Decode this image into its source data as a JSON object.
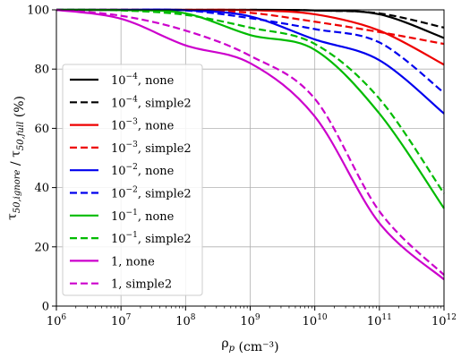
{
  "chart_data": {
    "type": "line",
    "xlabel": "ρ_p (cm⁻³)",
    "ylabel": "τ_50,ignore / τ_50,full (%)",
    "xscale": "log",
    "xlim": [
      1000000,
      1000000000000
    ],
    "ylim": [
      0,
      100
    ],
    "grid": true,
    "legend_position": "left",
    "x_ticks": [
      {
        "base": "10",
        "exp": "6"
      },
      {
        "base": "10",
        "exp": "7"
      },
      {
        "base": "10",
        "exp": "8"
      },
      {
        "base": "10",
        "exp": "9"
      },
      {
        "base": "10",
        "exp": "10"
      },
      {
        "base": "10",
        "exp": "11"
      },
      {
        "base": "10",
        "exp": "12"
      }
    ],
    "y_ticks": [
      "0",
      "20",
      "40",
      "60",
      "80",
      "100"
    ],
    "x": [
      1000000,
      10000000,
      100000000,
      1000000000,
      10000000000,
      100000000000,
      1000000000000
    ],
    "series": [
      {
        "label_coef": "10",
        "label_exp": "−4",
        "label_rest": ", none",
        "color": "#000000",
        "dash": "solid",
        "values": [
          100,
          100,
          100,
          100,
          99.8,
          98.5,
          90.5
        ]
      },
      {
        "label_coef": "10",
        "label_exp": "−4",
        "label_rest": ", simple2",
        "color": "#000000",
        "dash": "dashed",
        "values": [
          100,
          100,
          100,
          100,
          99.8,
          98.8,
          94
        ]
      },
      {
        "label_coef": "10",
        "label_exp": "−3",
        "label_rest": ", none",
        "color": "#ee0000",
        "dash": "solid",
        "values": [
          100,
          100,
          100,
          99.9,
          98.5,
          93,
          81.5
        ]
      },
      {
        "label_coef": "10",
        "label_exp": "−3",
        "label_rest": ", simple2",
        "color": "#ee0000",
        "dash": "dashed",
        "values": [
          100,
          100,
          99.9,
          99,
          96,
          92.5,
          88.5
        ]
      },
      {
        "label_coef": "10",
        "label_exp": "−2",
        "label_rest": ", none",
        "color": "#0000ee",
        "dash": "solid",
        "values": [
          100,
          100,
          99.9,
          97.8,
          90,
          83,
          65
        ]
      },
      {
        "label_coef": "10",
        "label_exp": "−2",
        "label_rest": ", simple2",
        "color": "#0000ee",
        "dash": "dashed",
        "values": [
          100,
          100,
          99.8,
          97.2,
          93.5,
          89,
          72
        ]
      },
      {
        "label_coef": "10",
        "label_exp": "−1",
        "label_rest": ", none",
        "color": "#00bb00",
        "dash": "solid",
        "values": [
          100,
          99.9,
          98.8,
          91.5,
          86.5,
          65,
          33
        ]
      },
      {
        "label_coef": "10",
        "label_exp": "−1",
        "label_rest": ", simple2",
        "color": "#00bb00",
        "dash": "dashed",
        "values": [
          100,
          99.8,
          98.3,
          94,
          88.5,
          70,
          38
        ]
      },
      {
        "label_coef": "1",
        "label_exp": "",
        "label_rest": ", none",
        "color": "#cc00cc",
        "dash": "solid",
        "values": [
          100,
          97,
          88,
          82,
          64,
          28,
          9
        ]
      },
      {
        "label_coef": "1",
        "label_exp": "",
        "label_rest": ", simple2",
        "color": "#cc00cc",
        "dash": "dashed",
        "values": [
          100,
          98,
          93,
          84.5,
          70,
          32,
          10.5
        ]
      }
    ]
  }
}
